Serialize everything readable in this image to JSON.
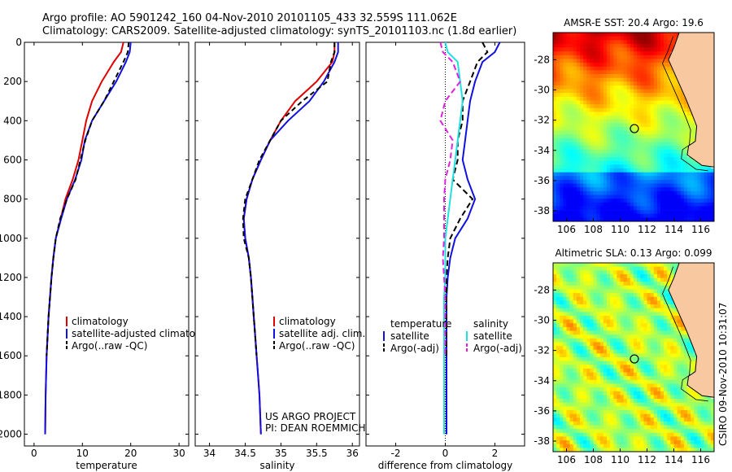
{
  "header": {
    "line1": "Argo profile: AO 5901242_160 04-Nov-2010 20101105_433 32.559S 111.062E",
    "line2": "Climatology: CARS2009. Satellite-adjusted climatology: synTS_20101103.nc (1.8d earlier)"
  },
  "side_text": "CSIRO 09-Nov-2010 10:31:07",
  "colors": {
    "red": "#e00000",
    "blue": "#1010e0",
    "black": "#000000",
    "cyan": "#20e0e0",
    "magenta": "#e020e0",
    "land": "#f8c8a0"
  },
  "chart_data": [
    {
      "type": "line",
      "id": "temperature",
      "xlabel": "temperature",
      "ylabel": "",
      "xlim": [
        -2,
        32
      ],
      "ylim": [
        2060,
        0
      ],
      "xticks": [
        0,
        10,
        20,
        30
      ],
      "yticks": [
        0,
        200,
        400,
        600,
        800,
        1000,
        1200,
        1400,
        1600,
        1800,
        2000
      ],
      "legend": [
        "climatology",
        "satellite-adjusted climatology",
        "Argo(..raw -QC)"
      ],
      "series": [
        {
          "name": "climatology",
          "color": "red",
          "dash": "",
          "x": [
            18.5,
            18,
            16.5,
            14,
            12,
            10.8,
            10,
            9.2,
            8,
            6.5,
            5.5,
            4.5,
            4,
            3.6,
            3.3,
            3,
            2.8,
            2.6,
            2.5,
            2.4,
            2.3
          ],
          "y": [
            0,
            50,
            100,
            200,
            300,
            400,
            500,
            600,
            700,
            800,
            900,
            1000,
            1100,
            1200,
            1300,
            1400,
            1500,
            1600,
            1700,
            1800,
            2000
          ]
        },
        {
          "name": "satellite-adjusted climatology",
          "color": "blue",
          "dash": "",
          "x": [
            20,
            19.8,
            19,
            17,
            14.5,
            12,
            10.5,
            9.8,
            8.5,
            6.8,
            5.6,
            4.5,
            4,
            3.6,
            3.3,
            3,
            2.8,
            2.6,
            2.5,
            2.4,
            2.3
          ],
          "y": [
            0,
            50,
            100,
            200,
            300,
            400,
            500,
            600,
            700,
            800,
            900,
            1000,
            1100,
            1200,
            1300,
            1400,
            1500,
            1600,
            1700,
            1800,
            2000
          ]
        },
        {
          "name": "Argo(..raw -QC)",
          "color": "black",
          "dash": "6,4",
          "x": [
            19.6,
            19.4,
            18.5,
            16.5,
            14.5,
            12,
            10.6,
            9.6,
            8.6,
            6.8,
            5.4,
            4.5,
            4,
            3.6,
            3.3,
            3,
            2.8,
            2.6
          ],
          "y": [
            0,
            50,
            100,
            200,
            300,
            400,
            500,
            600,
            700,
            800,
            900,
            1000,
            1100,
            1200,
            1300,
            1400,
            1500,
            1600
          ]
        }
      ]
    },
    {
      "type": "line",
      "id": "salinity",
      "xlabel": "salinity",
      "ylabel": "",
      "xlim": [
        33.8,
        36.1
      ],
      "ylim": [
        2060,
        0
      ],
      "xticks": [
        34,
        34.5,
        35,
        35.5,
        36
      ],
      "legend": [
        "climatology",
        "satellite adj. clim.",
        "Argo(..raw -QC)"
      ],
      "annotation": [
        "US ARGO PROJECT",
        "PI: DEAN ROEMMICH"
      ],
      "series": [
        {
          "name": "climatology",
          "color": "red",
          "dash": "",
          "x": [
            35.75,
            35.75,
            35.72,
            35.5,
            35.2,
            35,
            34.85,
            34.72,
            34.6,
            34.52,
            34.48,
            34.5,
            34.55,
            34.58,
            34.6,
            34.62,
            34.64,
            34.66,
            34.68,
            34.7,
            34.72
          ],
          "y": [
            0,
            50,
            100,
            200,
            300,
            400,
            500,
            600,
            700,
            800,
            900,
            1000,
            1100,
            1200,
            1300,
            1400,
            1500,
            1600,
            1700,
            1800,
            2000
          ]
        },
        {
          "name": "satellite adj. clim.",
          "color": "blue",
          "dash": "",
          "x": [
            35.8,
            35.8,
            35.75,
            35.6,
            35.4,
            35.1,
            34.85,
            34.72,
            34.6,
            34.52,
            34.48,
            34.5,
            34.55,
            34.58,
            34.6,
            34.62,
            34.64,
            34.66,
            34.68,
            34.7,
            34.72
          ],
          "y": [
            0,
            50,
            100,
            200,
            300,
            400,
            500,
            600,
            700,
            800,
            900,
            1000,
            1100,
            1200,
            1300,
            1400,
            1500,
            1600,
            1700,
            1800,
            2000
          ]
        },
        {
          "name": "Argo(..raw -QC)",
          "color": "black",
          "dash": "6,4",
          "x": [
            35.75,
            35.75,
            35.7,
            35.65,
            35.3,
            35,
            34.85,
            34.7,
            34.6,
            34.5,
            34.47,
            34.48,
            34.55,
            34.58,
            34.6,
            34.62,
            34.64,
            34.66
          ],
          "y": [
            0,
            50,
            100,
            200,
            300,
            400,
            500,
            600,
            700,
            800,
            900,
            1000,
            1100,
            1200,
            1300,
            1400,
            1500,
            1600
          ]
        }
      ]
    },
    {
      "type": "line",
      "id": "difference",
      "xlabel": "difference from climatology",
      "ylabel": "",
      "xlim": [
        -3.2,
        3.2
      ],
      "ylim": [
        2060,
        0
      ],
      "xticks": [
        -2,
        0,
        2
      ],
      "legend_groups": [
        {
          "title": "temperature",
          "items": [
            "satellite",
            "Argo(-adj)"
          ]
        },
        {
          "title": "salinity",
          "items": [
            "satellite",
            "Argo(-adj)"
          ]
        }
      ],
      "series": [
        {
          "name": "satellite",
          "group": "temperature",
          "color": "blue",
          "dash": "",
          "x": [
            2.2,
            2.0,
            1.5,
            1.2,
            1.0,
            0.9,
            0.8,
            0.7,
            0.9,
            1.2,
            0.9,
            0.4,
            0.2,
            0.1,
            0.05,
            0.05,
            0.05,
            0.05,
            0.05,
            0.05,
            0.05
          ],
          "y": [
            0,
            50,
            100,
            200,
            300,
            400,
            500,
            600,
            700,
            800,
            900,
            1000,
            1100,
            1200,
            1300,
            1400,
            1500,
            1600,
            1700,
            1800,
            2000
          ]
        },
        {
          "name": "Argo(-adj)",
          "group": "temperature",
          "color": "black",
          "dash": "7,4",
          "x": [
            1.5,
            1.7,
            1.3,
            1.0,
            0.7,
            0.7,
            0.5,
            0.5,
            0.3,
            1.1,
            0.6,
            0.2,
            0.1,
            0.05,
            0.05,
            0.05,
            0.05,
            0.05
          ],
          "y": [
            0,
            50,
            100,
            200,
            300,
            400,
            500,
            600,
            700,
            800,
            900,
            1000,
            1100,
            1200,
            1300,
            1400,
            1500,
            1600
          ]
        },
        {
          "name": "satellite",
          "group": "salinity",
          "color": "cyan",
          "dash": "",
          "x": [
            0,
            0.1,
            0.5,
            0.6,
            0.7,
            0.6,
            0.5,
            0.4,
            0.3,
            0.2,
            0.1,
            0,
            0,
            0,
            -0.05,
            -0.05,
            -0.05,
            -0.05,
            -0.05,
            -0.05,
            -0.05
          ],
          "y": [
            0,
            50,
            100,
            200,
            300,
            400,
            500,
            600,
            700,
            800,
            900,
            1000,
            1100,
            1200,
            1300,
            1400,
            1500,
            1600,
            1700,
            1800,
            2000
          ]
        },
        {
          "name": "Argo(-adj)",
          "group": "salinity",
          "color": "magenta",
          "dash": "7,4",
          "x": [
            -0.2,
            -0.1,
            0.3,
            0.6,
            0,
            -0.2,
            0.3,
            0.2,
            0,
            -0.05,
            -0.05,
            -0.05,
            -0.1,
            -0.05,
            0,
            0,
            0,
            0
          ],
          "y": [
            0,
            50,
            100,
            200,
            300,
            400,
            500,
            600,
            700,
            800,
            900,
            1000,
            1100,
            1200,
            1300,
            1400,
            1500,
            1600
          ]
        }
      ]
    },
    {
      "type": "heatmap",
      "id": "sst_map",
      "title": "AMSR-E SST: 20.4 Argo: 19.6",
      "xlim": [
        105,
        117
      ],
      "ylim": [
        -38.7,
        -26.2
      ],
      "xticks": [
        106,
        108,
        110,
        112,
        114,
        116
      ],
      "yticks": [
        -28,
        -30,
        -32,
        -34,
        -36,
        -38
      ],
      "marker": {
        "lon": 111.06,
        "lat": -32.56
      },
      "colormap": "jet",
      "value_range": [
        13,
        26
      ]
    },
    {
      "type": "heatmap",
      "id": "sla_map",
      "title": "Altimetric SLA: 0.13 Argo: 0.099",
      "xlim": [
        105,
        117
      ],
      "ylim": [
        -38.7,
        -26.2
      ],
      "xticks": [
        106,
        108,
        110,
        112,
        114,
        116
      ],
      "yticks": [
        -28,
        -30,
        -32,
        -34,
        -36,
        -38
      ],
      "marker": {
        "lon": 111.06,
        "lat": -32.56
      },
      "colormap": "jet",
      "value_range": [
        -0.4,
        0.4
      ]
    }
  ]
}
